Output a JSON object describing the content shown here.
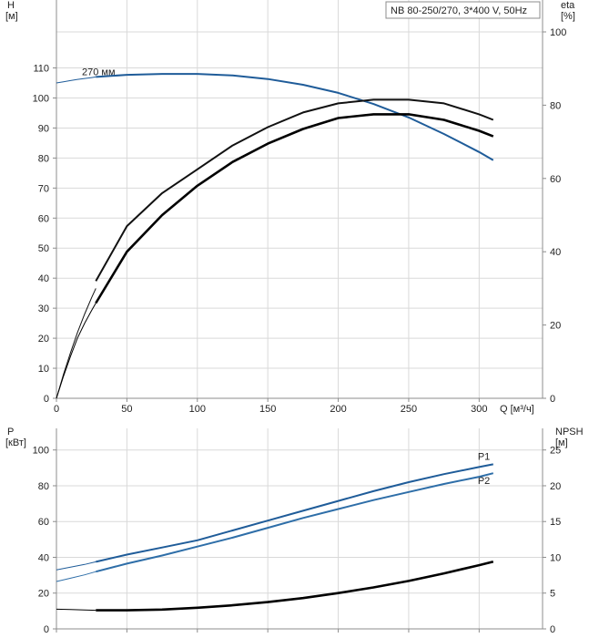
{
  "chart_data": [
    {
      "type": "line",
      "panel": "head-efficiency",
      "legend_box": "NB 80-250/270, 3*400 V, 50Hz",
      "y_left_label": [
        "H",
        "[м]"
      ],
      "y_right_label": [
        "eta",
        "[%]"
      ],
      "x_label": "Q [м³/ч]",
      "x_ticks": [
        0,
        50,
        100,
        150,
        200,
        250,
        300
      ],
      "y_left_ticks": [
        0,
        10,
        20,
        30,
        40,
        50,
        60,
        70,
        80,
        90,
        100,
        110
      ],
      "y_right_ticks": [
        0,
        20,
        40,
        60,
        80,
        100
      ],
      "xlim": [
        0,
        345
      ],
      "y_left_lim": [
        0,
        122
      ],
      "y_right_lim": [
        0,
        100
      ],
      "grid": true,
      "series": [
        {
          "name": "270 мм",
          "axis": "left",
          "color": "#1f5c99",
          "thin_x": [
            0,
            5,
            10,
            15,
            20,
            25,
            28
          ],
          "thin_y": [
            105.0,
            105.4,
            105.8,
            106.2,
            106.5,
            106.8,
            107.0
          ],
          "x": [
            28,
            50,
            75,
            100,
            125,
            150,
            175,
            200,
            225,
            250,
            275,
            300,
            310
          ],
          "y": [
            107.0,
            107.7,
            108.0,
            108.0,
            107.5,
            106.3,
            104.4,
            101.7,
            98.0,
            93.5,
            88.0,
            82.0,
            79.3
          ]
        },
        {
          "name": "",
          "axis": "right",
          "color": "#111111",
          "thin_x": [
            0,
            5,
            10,
            15,
            20,
            25,
            28
          ],
          "thin_y": [
            0,
            6.5,
            12.5,
            18,
            23,
            27.5,
            30
          ],
          "x": [
            28,
            50,
            75,
            100,
            125,
            150,
            175,
            200,
            225,
            250,
            275,
            300,
            310
          ],
          "y": [
            32,
            47,
            56,
            62.5,
            69,
            74,
            78,
            80.5,
            81.5,
            81.5,
            80.5,
            77.5,
            76
          ]
        },
        {
          "name": "",
          "axis": "right",
          "color": "#000000",
          "thin_x": [
            0,
            5,
            10,
            15,
            20,
            25,
            28
          ],
          "thin_y": [
            0,
            6,
            11.5,
            16.5,
            20.5,
            24,
            26
          ],
          "x": [
            28,
            50,
            75,
            100,
            125,
            150,
            175,
            200,
            225,
            250,
            275,
            300,
            310
          ],
          "y": [
            26,
            40,
            50,
            58,
            64.5,
            69.5,
            73.5,
            76.5,
            77.5,
            77.5,
            76,
            73,
            71.5
          ]
        }
      ]
    },
    {
      "type": "line",
      "panel": "power-npsh",
      "y_left_label": [
        "P",
        "[кВт]"
      ],
      "y_right_label": [
        "NPSH",
        "[м]"
      ],
      "y_left_ticks": [
        0,
        20,
        40,
        60,
        80,
        100
      ],
      "y_right_ticks": [
        0,
        5,
        10,
        15,
        20,
        25
      ],
      "xlim": [
        0,
        345
      ],
      "y_left_lim": [
        0,
        108
      ],
      "y_right_lim": [
        0,
        27
      ],
      "grid": true,
      "series": [
        {
          "name": "P1",
          "axis": "left",
          "color": "#1f5c99",
          "thin_x": [
            0,
            10,
            20,
            28
          ],
          "thin_y": [
            33,
            34.5,
            36,
            37.5
          ],
          "x": [
            28,
            50,
            75,
            100,
            125,
            150,
            175,
            200,
            225,
            250,
            275,
            300,
            310
          ],
          "y": [
            37.5,
            41.5,
            45.5,
            49.5,
            55,
            60.5,
            66,
            71.5,
            77,
            82,
            86.5,
            90.5,
            92
          ]
        },
        {
          "name": "P2",
          "axis": "left",
          "color": "#2e6ea8",
          "thin_x": [
            0,
            10,
            20,
            28
          ],
          "thin_y": [
            26.5,
            28.3,
            30.2,
            32
          ],
          "x": [
            28,
            50,
            75,
            100,
            125,
            150,
            175,
            200,
            225,
            250,
            275,
            300,
            310
          ],
          "y": [
            32,
            36.5,
            41,
            46,
            51,
            56.5,
            62,
            67,
            72,
            76.5,
            81,
            85,
            87
          ]
        },
        {
          "name": "",
          "axis": "right",
          "color": "#000000",
          "thin_x": [
            0,
            10,
            20,
            28
          ],
          "thin_y": [
            2.75,
            2.7,
            2.65,
            2.6
          ],
          "x": [
            28,
            50,
            75,
            100,
            125,
            150,
            175,
            200,
            225,
            250,
            275,
            300,
            310
          ],
          "y": [
            2.6,
            2.6,
            2.7,
            2.95,
            3.3,
            3.75,
            4.3,
            5.0,
            5.8,
            6.7,
            7.75,
            8.9,
            9.4
          ]
        }
      ]
    }
  ]
}
